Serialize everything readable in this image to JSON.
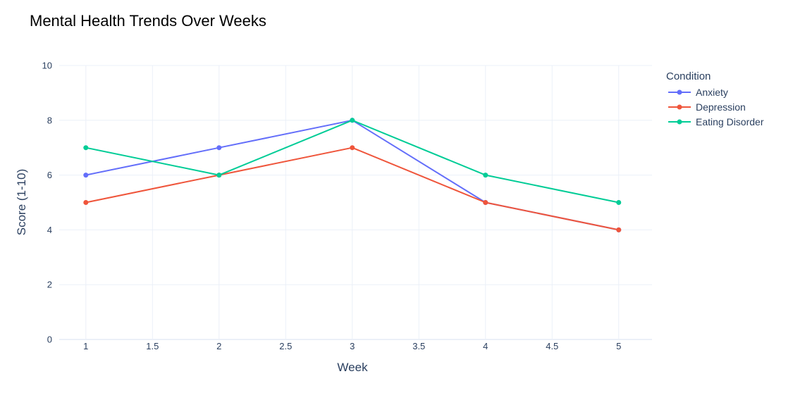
{
  "chart_data": {
    "type": "line",
    "title": "Mental Health Trends Over Weeks",
    "xlabel": "Week",
    "ylabel": "Score (1-10)",
    "x": [
      1,
      2,
      3,
      4,
      5
    ],
    "xlim": [
      0.8,
      5.25
    ],
    "ylim": [
      0,
      10
    ],
    "x_ticks": [
      "1",
      "1.5",
      "2",
      "2.5",
      "3",
      "3.5",
      "4",
      "4.5",
      "5"
    ],
    "y_ticks": [
      "0",
      "2",
      "4",
      "6",
      "8",
      "10"
    ],
    "grid": true,
    "legend": {
      "title": "Condition",
      "position": "top-right"
    },
    "series": [
      {
        "name": "Anxiety",
        "color": "#636efa",
        "values": [
          6,
          7,
          8,
          5,
          4
        ]
      },
      {
        "name": "Depression",
        "color": "#ef553b",
        "values": [
          5,
          6,
          7,
          5,
          4
        ]
      },
      {
        "name": "Eating Disorder",
        "color": "#00cc96",
        "values": [
          7,
          6,
          8,
          6,
          5
        ]
      }
    ]
  }
}
